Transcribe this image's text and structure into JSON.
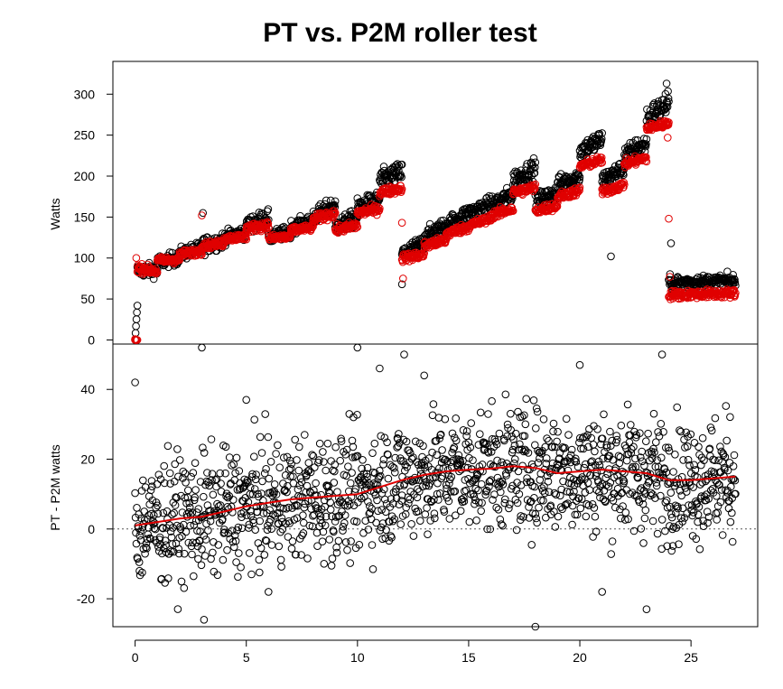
{
  "title": "PT vs. P2M roller test",
  "colors": {
    "pt": "#000000",
    "p2m": "#e00000",
    "smooth": "#e00000",
    "zero_line": "#555555"
  },
  "chart_data": [
    {
      "type": "scatter",
      "panel": "top",
      "ylabel": "Watts",
      "xlim": [
        -1,
        28
      ],
      "ylim": [
        -5,
        340
      ],
      "y_ticks": [
        "0",
        "50",
        "100",
        "150",
        "200",
        "250",
        "300"
      ],
      "series": [
        {
          "marker": "open-circle",
          "color": "black",
          "segments": [
            {
              "x": [
                0.0,
                0.1
              ],
              "y": [
                0,
                42
              ]
            },
            {
              "x": [
                0.1,
                1.0
              ],
              "y": [
                85,
                85
              ],
              "spread": 8
            },
            {
              "x": [
                1.0,
                2.0
              ],
              "y": [
                95,
                100
              ],
              "spread": 8
            },
            {
              "x": [
                2.0,
                3.0
              ],
              "y": [
                105,
                112
              ],
              "spread": 8
            },
            {
              "x": [
                3.0,
                4.0
              ],
              "y": [
                115,
                122
              ],
              "spread": 10
            },
            {
              "x": [
                4.0,
                5.0
              ],
              "y": [
                125,
                132
              ],
              "spread": 8
            },
            {
              "x": [
                5.0,
                6.0
              ],
              "y": [
                140,
                150
              ],
              "spread": 10
            },
            {
              "x": [
                6.0,
                7.0
              ],
              "y": [
                125,
                132
              ],
              "spread": 8
            },
            {
              "x": [
                7.0,
                8.0
              ],
              "y": [
                138,
                145
              ],
              "spread": 8
            },
            {
              "x": [
                8.0,
                9.0
              ],
              "y": [
                150,
                165
              ],
              "spread": 10
            },
            {
              "x": [
                9.0,
                10.0
              ],
              "y": [
                138,
                150
              ],
              "spread": 10
            },
            {
              "x": [
                10.0,
                11.0
              ],
              "y": [
                162,
                172
              ],
              "spread": 10
            },
            {
              "x": [
                11.0,
                12.0
              ],
              "y": [
                195,
                205
              ],
              "spread": 12
            },
            {
              "x": [
                12.0,
                13.0
              ],
              "y": [
                105,
                118
              ],
              "spread": 10
            },
            {
              "x": [
                13.0,
                14.0
              ],
              "y": [
                125,
                140
              ],
              "spread": 10
            },
            {
              "x": [
                14.0,
                15.0
              ],
              "y": [
                140,
                155
              ],
              "spread": 10
            },
            {
              "x": [
                15.0,
                16.0
              ],
              "y": [
                155,
                165
              ],
              "spread": 10
            },
            {
              "x": [
                16.0,
                17.0
              ],
              "y": [
                165,
                178
              ],
              "spread": 10
            },
            {
              "x": [
                17.0,
                18.0
              ],
              "y": [
                195,
                210
              ],
              "spread": 12
            },
            {
              "x": [
                18.0,
                19.0
              ],
              "y": [
                170,
                180
              ],
              "spread": 10
            },
            {
              "x": [
                19.0,
                20.0
              ],
              "y": [
                190,
                200
              ],
              "spread": 10
            },
            {
              "x": [
                20.0,
                21.0
              ],
              "y": [
                230,
                245
              ],
              "spread": 12
            },
            {
              "x": [
                21.0,
                22.0
              ],
              "y": [
                195,
                210
              ],
              "spread": 10
            },
            {
              "x": [
                22.0,
                23.0
              ],
              "y": [
                225,
                240
              ],
              "spread": 12
            },
            {
              "x": [
                23.0,
                24.0
              ],
              "y": [
                270,
                290
              ],
              "spread": 14
            },
            {
              "x": [
                24.0,
                27.0
              ],
              "y": [
                70,
                72
              ],
              "spread": 8
            }
          ],
          "extra_points": [
            [
              3.05,
              155
            ],
            [
              12.0,
              68
            ],
            [
              21.4,
              102
            ],
            [
              24.1,
              118
            ],
            [
              23.9,
              313
            ]
          ]
        },
        {
          "marker": "open-circle",
          "color": "red",
          "segments": [
            {
              "x": [
                0.0,
                0.1
              ],
              "y": [
                0,
                0
              ]
            },
            {
              "x": [
                0.1,
                1.0
              ],
              "y": [
                88,
                84
              ],
              "spread": 5
            },
            {
              "x": [
                1.0,
                2.0
              ],
              "y": [
                97,
                98
              ],
              "spread": 4
            },
            {
              "x": [
                2.0,
                3.0
              ],
              "y": [
                105,
                108
              ],
              "spread": 4
            },
            {
              "x": [
                3.0,
                4.0
              ],
              "y": [
                115,
                118
              ],
              "spread": 4
            },
            {
              "x": [
                4.0,
                5.0
              ],
              "y": [
                124,
                126
              ],
              "spread": 4
            },
            {
              "x": [
                5.0,
                6.0
              ],
              "y": [
                136,
                140
              ],
              "spread": 5
            },
            {
              "x": [
                6.0,
                7.0
              ],
              "y": [
                124,
                126
              ],
              "spread": 4
            },
            {
              "x": [
                7.0,
                8.0
              ],
              "y": [
                134,
                137
              ],
              "spread": 4
            },
            {
              "x": [
                8.0,
                9.0
              ],
              "y": [
                147,
                155
              ],
              "spread": 5
            },
            {
              "x": [
                9.0,
                10.0
              ],
              "y": [
                134,
                140
              ],
              "spread": 5
            },
            {
              "x": [
                10.0,
                11.0
              ],
              "y": [
                155,
                160
              ],
              "spread": 5
            },
            {
              "x": [
                11.0,
                12.0
              ],
              "y": [
                180,
                185
              ],
              "spread": 5
            },
            {
              "x": [
                12.0,
                13.0
              ],
              "y": [
                100,
                104
              ],
              "spread": 5
            },
            {
              "x": [
                13.0,
                14.0
              ],
              "y": [
                115,
                122
              ],
              "spread": 5
            },
            {
              "x": [
                14.0,
                15.0
              ],
              "y": [
                130,
                138
              ],
              "spread": 5
            },
            {
              "x": [
                15.0,
                16.0
              ],
              "y": [
                140,
                148
              ],
              "spread": 5
            },
            {
              "x": [
                16.0,
                17.0
              ],
              "y": [
                152,
                160
              ],
              "spread": 5
            },
            {
              "x": [
                17.0,
                18.0
              ],
              "y": [
                180,
                186
              ],
              "spread": 5
            },
            {
              "x": [
                18.0,
                19.0
              ],
              "y": [
                158,
                164
              ],
              "spread": 5
            },
            {
              "x": [
                19.0,
                20.0
              ],
              "y": [
                175,
                182
              ],
              "spread": 5
            },
            {
              "x": [
                20.0,
                21.0
              ],
              "y": [
                212,
                220
              ],
              "spread": 5
            },
            {
              "x": [
                21.0,
                22.0
              ],
              "y": [
                180,
                190
              ],
              "spread": 5
            },
            {
              "x": [
                22.0,
                23.0
              ],
              "y": [
                215,
                222
              ],
              "spread": 5
            },
            {
              "x": [
                23.0,
                24.0
              ],
              "y": [
                258,
                265
              ],
              "spread": 5
            },
            {
              "x": [
                24.0,
                27.0
              ],
              "y": [
                55,
                57
              ],
              "spread": 5
            }
          ],
          "extra_points": [
            [
              0.0,
              1
            ],
            [
              0.05,
              100
            ],
            [
              3.0,
              152
            ],
            [
              12.0,
              143
            ],
            [
              12.05,
              75
            ],
            [
              24.0,
              148
            ],
            [
              24.05,
              77
            ],
            [
              23.95,
              247
            ]
          ]
        }
      ]
    },
    {
      "type": "scatter",
      "panel": "bottom",
      "ylabel": "PT - P2M watts",
      "xlim": [
        -1,
        28
      ],
      "ylim": [
        -28,
        53
      ],
      "x_ticks": [
        "0",
        "5",
        "10",
        "15",
        "20",
        "25"
      ],
      "y_ticks": [
        "-20",
        "0",
        "20",
        "40"
      ],
      "reference_line": {
        "y": 0,
        "style": "dotted"
      },
      "smooth_curve": {
        "color": "red",
        "x": [
          0,
          1,
          2,
          3,
          4,
          5,
          6,
          7,
          8,
          9,
          10,
          11,
          12,
          13,
          14,
          15,
          16,
          17,
          18,
          19,
          20,
          21,
          22,
          23,
          24,
          25,
          26,
          27
        ],
        "y": [
          1,
          2,
          3,
          3.5,
          5,
          6.5,
          7.5,
          8.5,
          9,
          9.5,
          10,
          12,
          14,
          15.5,
          16.5,
          17,
          17.3,
          18,
          17.5,
          16,
          16.5,
          17,
          16.5,
          16,
          14,
          14,
          14.5,
          15
        ]
      },
      "series": [
        {
          "marker": "open-circle",
          "color": "black",
          "trend_x": [
            0,
            2,
            4,
            6,
            8,
            10,
            12,
            14,
            16,
            18,
            20,
            22,
            24,
            27
          ],
          "trend_y": [
            1,
            3,
            5,
            7.5,
            9,
            10,
            14,
            16.5,
            17.3,
            17.5,
            16.5,
            16.5,
            14,
            15
          ],
          "spread": 9,
          "extra_points": [
            [
              0.0,
              42
            ],
            [
              3.0,
              52
            ],
            [
              10.0,
              52
            ],
            [
              12.1,
              50
            ],
            [
              11.0,
              46
            ],
            [
              13.0,
              44
            ],
            [
              20.0,
              47
            ],
            [
              23.7,
              50
            ],
            [
              3.1,
              -26
            ],
            [
              18.0,
              -28
            ],
            [
              23.0,
              -23
            ],
            [
              5.0,
              37
            ],
            [
              0.2,
              -12
            ],
            [
              6.0,
              -18
            ],
            [
              21.0,
              -18
            ]
          ]
        }
      ]
    }
  ]
}
